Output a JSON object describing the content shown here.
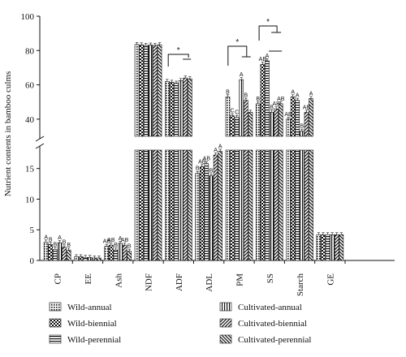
{
  "chart_data": {
    "type": "bar",
    "ylabel": "Nutrient contents in bamboo culms",
    "axis_break": true,
    "lower_axis": {
      "ylim": [
        0,
        18
      ],
      "ticks": [
        "0",
        "5",
        "10",
        "15"
      ]
    },
    "upper_axis": {
      "ylim": [
        30,
        100
      ],
      "ticks": [
        "40",
        "60",
        "80",
        "100"
      ]
    },
    "categories": [
      "CP",
      "EE",
      "Ash",
      "NDF",
      "ADF",
      "ADL",
      "PM",
      "SS",
      "Starch",
      "GE"
    ],
    "series": [
      {
        "name": "Wild-annual",
        "values": [
          3.0,
          0.6,
          2.3,
          83.5,
          62.0,
          14.2,
          53.0,
          49.0,
          40.0,
          4.2
        ]
      },
      {
        "name": "Wild-biennial",
        "values": [
          2.6,
          0.6,
          2.5,
          83.3,
          61.5,
          15.3,
          42.0,
          72.0,
          53.0,
          4.2
        ]
      },
      {
        "name": "Wild-perennial",
        "values": [
          1.8,
          0.5,
          1.7,
          83.0,
          61.0,
          15.8,
          41.0,
          74.0,
          51.0,
          4.2
        ]
      },
      {
        "name": "Cultivated-annual",
        "values": [
          2.9,
          0.5,
          2.8,
          83.2,
          62.5,
          13.8,
          63.0,
          44.0,
          33.0,
          4.2
        ]
      },
      {
        "name": "Cultivated-biennial",
        "values": [
          2.2,
          0.4,
          2.5,
          83.0,
          64.0,
          17.2,
          51.0,
          46.0,
          44.0,
          4.2
        ]
      },
      {
        "name": "Cultivated-perennial",
        "values": [
          1.7,
          0.4,
          1.5,
          83.4,
          63.5,
          17.8,
          44.0,
          49.0,
          52.0,
          4.2
        ]
      }
    ],
    "significance_letters": {
      "CP": [
        "A",
        "B",
        "B",
        "A",
        "B",
        "B"
      ],
      "Ash": [
        "AB",
        "AB",
        "B",
        "A",
        "AB",
        "B"
      ],
      "ADL": [
        "B",
        "AB",
        "AB",
        "B",
        "A",
        "A"
      ],
      "PM": [
        "B",
        "C",
        "C",
        "A",
        "B",
        ""
      ],
      "SS": [
        "B",
        "AB",
        "A",
        "B",
        "AB",
        "AB"
      ],
      "Starch": [
        "AB",
        "A",
        "A",
        "B",
        "AB",
        "A"
      ]
    },
    "significance_stars": [
      "*",
      "*",
      "*",
      "*"
    ],
    "legend": {
      "position": "bottom",
      "entries": [
        "Wild-annual",
        "Cultivated-annual",
        "Wild-biennial",
        "Cultivated-biennial",
        "Wild-perennial",
        "Cultivated-perennial"
      ]
    },
    "grid": false
  }
}
